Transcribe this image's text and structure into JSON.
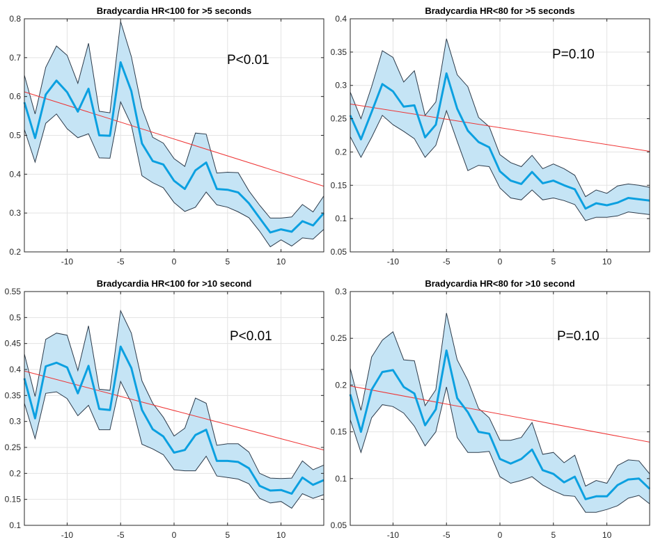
{
  "chart_data": [
    {
      "type": "line",
      "title": "Bradycardia HR<100 for >5 seconds",
      "annotation": "P<0.01",
      "xlim": [
        -14,
        14
      ],
      "ylim": [
        0.2,
        0.8
      ],
      "xticks": [
        -10,
        -5,
        0,
        5,
        10
      ],
      "yticks": [
        0.2,
        0.3,
        0.4,
        0.5,
        0.6,
        0.7,
        0.8
      ],
      "xtick_labels": [
        "-10",
        "-5",
        "0",
        "5",
        "10"
      ],
      "ytick_labels": [
        "0.2",
        "0.3",
        "0.4",
        "0.5",
        "0.6",
        "0.7",
        "0.8"
      ],
      "grid": true,
      "x": [
        -14,
        -13,
        -12,
        -11,
        -10,
        -9,
        -8,
        -7,
        -6,
        -5,
        -4,
        -3,
        -2,
        -1,
        0,
        1,
        2,
        3,
        4,
        5,
        6,
        7,
        8,
        9,
        10,
        11,
        12,
        13,
        14
      ],
      "mean": [
        0.585,
        0.493,
        0.605,
        0.641,
        0.611,
        0.561,
        0.62,
        0.5,
        0.499,
        0.688,
        0.614,
        0.479,
        0.434,
        0.425,
        0.383,
        0.362,
        0.41,
        0.43,
        0.362,
        0.36,
        0.353,
        0.325,
        0.287,
        0.25,
        0.258,
        0.252,
        0.279,
        0.268,
        0.3
      ],
      "upper": [
        0.655,
        0.555,
        0.675,
        0.73,
        0.706,
        0.634,
        0.737,
        0.562,
        0.558,
        0.793,
        0.703,
        0.57,
        0.495,
        0.48,
        0.44,
        0.42,
        0.506,
        0.503,
        0.403,
        0.405,
        0.404,
        0.357,
        0.32,
        0.287,
        0.287,
        0.29,
        0.322,
        0.303,
        0.344
      ],
      "lower": [
        0.515,
        0.431,
        0.531,
        0.555,
        0.517,
        0.494,
        0.504,
        0.442,
        0.441,
        0.586,
        0.527,
        0.396,
        0.378,
        0.365,
        0.327,
        0.304,
        0.315,
        0.354,
        0.321,
        0.315,
        0.303,
        0.288,
        0.253,
        0.213,
        0.231,
        0.215,
        0.236,
        0.233,
        0.258
      ],
      "trend": [
        0.612,
        0.369
      ]
    },
    {
      "type": "line",
      "title": "Bradycardia HR<80 for >5 seconds",
      "annotation": "P=0.10",
      "xlim": [
        -14,
        14
      ],
      "ylim": [
        0.05,
        0.4
      ],
      "xticks": [
        -10,
        -5,
        0,
        5,
        10
      ],
      "yticks": [
        0.05,
        0.1,
        0.15,
        0.2,
        0.25,
        0.3,
        0.35,
        0.4
      ],
      "xtick_labels": [
        "-10",
        "-5",
        "0",
        "5",
        "10"
      ],
      "ytick_labels": [
        "0.05",
        "0.1",
        "0.15",
        "0.2",
        "0.25",
        "0.3",
        "0.35",
        "0.4"
      ],
      "grid": true,
      "x": [
        -14,
        -13,
        -12,
        -11,
        -10,
        -9,
        -8,
        -7,
        -6,
        -5,
        -4,
        -3,
        -2,
        -1,
        0,
        1,
        2,
        3,
        4,
        5,
        6,
        7,
        8,
        9,
        10,
        11,
        12,
        13,
        14
      ],
      "mean": [
        0.255,
        0.219,
        0.26,
        0.302,
        0.291,
        0.268,
        0.27,
        0.222,
        0.241,
        0.318,
        0.265,
        0.232,
        0.215,
        0.207,
        0.171,
        0.157,
        0.152,
        0.17,
        0.153,
        0.157,
        0.15,
        0.144,
        0.115,
        0.123,
        0.12,
        0.124,
        0.131,
        0.129,
        0.127
      ],
      "upper": [
        0.29,
        0.25,
        0.298,
        0.352,
        0.342,
        0.305,
        0.322,
        0.255,
        0.275,
        0.37,
        0.316,
        0.298,
        0.252,
        0.238,
        0.196,
        0.184,
        0.178,
        0.195,
        0.175,
        0.182,
        0.175,
        0.165,
        0.133,
        0.143,
        0.138,
        0.149,
        0.152,
        0.15,
        0.147
      ],
      "lower": [
        0.223,
        0.192,
        0.222,
        0.255,
        0.241,
        0.231,
        0.22,
        0.192,
        0.21,
        0.262,
        0.216,
        0.172,
        0.18,
        0.178,
        0.146,
        0.131,
        0.128,
        0.143,
        0.128,
        0.131,
        0.127,
        0.121,
        0.097,
        0.102,
        0.102,
        0.104,
        0.11,
        0.108,
        0.106
      ],
      "trend": [
        0.272,
        0.201
      ]
    },
    {
      "type": "line",
      "title": "Bradycardia HR<100 for >10 second",
      "annotation": "P<0.01",
      "xlim": [
        -14,
        14
      ],
      "ylim": [
        0.1,
        0.55
      ],
      "xticks": [
        -10,
        -5,
        0,
        5,
        10
      ],
      "yticks": [
        0.1,
        0.15,
        0.2,
        0.25,
        0.3,
        0.35,
        0.4,
        0.45,
        0.5,
        0.55
      ],
      "xtick_labels": [
        "-10",
        "-5",
        "0",
        "5",
        "10"
      ],
      "ytick_labels": [
        "0.1",
        "0.15",
        "0.2",
        "0.25",
        "0.3",
        "0.35",
        "0.4",
        "0.45",
        "0.5",
        "0.55"
      ],
      "grid": true,
      "x": [
        -14,
        -13,
        -12,
        -11,
        -10,
        -9,
        -8,
        -7,
        -6,
        -5,
        -4,
        -3,
        -2,
        -1,
        0,
        1,
        2,
        3,
        4,
        5,
        6,
        7,
        8,
        9,
        10,
        11,
        12,
        13,
        14
      ],
      "mean": [
        0.383,
        0.306,
        0.406,
        0.413,
        0.404,
        0.354,
        0.407,
        0.324,
        0.322,
        0.444,
        0.403,
        0.322,
        0.285,
        0.271,
        0.24,
        0.245,
        0.274,
        0.284,
        0.224,
        0.224,
        0.222,
        0.21,
        0.176,
        0.167,
        0.168,
        0.161,
        0.192,
        0.178,
        0.187
      ],
      "upper": [
        0.43,
        0.348,
        0.458,
        0.47,
        0.466,
        0.398,
        0.484,
        0.362,
        0.36,
        0.513,
        0.47,
        0.378,
        0.335,
        0.308,
        0.272,
        0.287,
        0.345,
        0.335,
        0.254,
        0.257,
        0.257,
        0.241,
        0.2,
        0.191,
        0.19,
        0.191,
        0.224,
        0.207,
        0.216
      ],
      "lower": [
        0.335,
        0.267,
        0.354,
        0.357,
        0.344,
        0.311,
        0.331,
        0.284,
        0.284,
        0.377,
        0.336,
        0.256,
        0.247,
        0.236,
        0.207,
        0.205,
        0.205,
        0.233,
        0.195,
        0.192,
        0.189,
        0.18,
        0.152,
        0.143,
        0.146,
        0.133,
        0.161,
        0.152,
        0.159
      ],
      "trend": [
        0.397,
        0.245
      ]
    },
    {
      "type": "line",
      "title": "Bradycardia HR<80 for >10 second",
      "annotation": "P=0.10",
      "xlim": [
        -14,
        14
      ],
      "ylim": [
        0.05,
        0.3
      ],
      "xticks": [
        -10,
        -5,
        0,
        5,
        10
      ],
      "yticks": [
        0.05,
        0.1,
        0.15,
        0.2,
        0.25,
        0.3
      ],
      "xtick_labels": [
        "-10",
        "-5",
        "0",
        "5",
        "10"
      ],
      "ytick_labels": [
        "0.05",
        "0.1",
        "0.15",
        "0.2",
        "0.25",
        "0.3"
      ],
      "grid": true,
      "x": [
        -14,
        -13,
        -12,
        -11,
        -10,
        -9,
        -8,
        -7,
        -6,
        -5,
        -4,
        -3,
        -2,
        -1,
        0,
        1,
        2,
        3,
        4,
        5,
        6,
        7,
        8,
        9,
        10,
        11,
        12,
        13,
        14
      ],
      "mean": [
        0.19,
        0.15,
        0.195,
        0.214,
        0.216,
        0.198,
        0.191,
        0.157,
        0.174,
        0.237,
        0.186,
        0.171,
        0.15,
        0.148,
        0.121,
        0.116,
        0.121,
        0.131,
        0.109,
        0.105,
        0.096,
        0.102,
        0.078,
        0.081,
        0.081,
        0.093,
        0.099,
        0.1,
        0.089
      ],
      "upper": [
        0.218,
        0.173,
        0.23,
        0.248,
        0.257,
        0.227,
        0.226,
        0.178,
        0.195,
        0.277,
        0.227,
        0.205,
        0.175,
        0.165,
        0.141,
        0.141,
        0.144,
        0.16,
        0.126,
        0.128,
        0.117,
        0.125,
        0.092,
        0.098,
        0.095,
        0.114,
        0.12,
        0.119,
        0.105
      ],
      "lower": [
        0.163,
        0.128,
        0.165,
        0.179,
        0.177,
        0.17,
        0.156,
        0.135,
        0.15,
        0.198,
        0.144,
        0.128,
        0.128,
        0.129,
        0.102,
        0.095,
        0.098,
        0.102,
        0.093,
        0.087,
        0.082,
        0.081,
        0.064,
        0.064,
        0.067,
        0.071,
        0.079,
        0.082,
        0.073
      ],
      "trend": [
        0.199,
        0.139
      ]
    }
  ],
  "colors": {
    "mean_line": "#0ca0e0",
    "band_fill": "#c5e4f5",
    "band_edge": "#2b3a4a",
    "trend_line": "#ee3333",
    "grid": "#e3e3e3",
    "axes": "#262626"
  }
}
